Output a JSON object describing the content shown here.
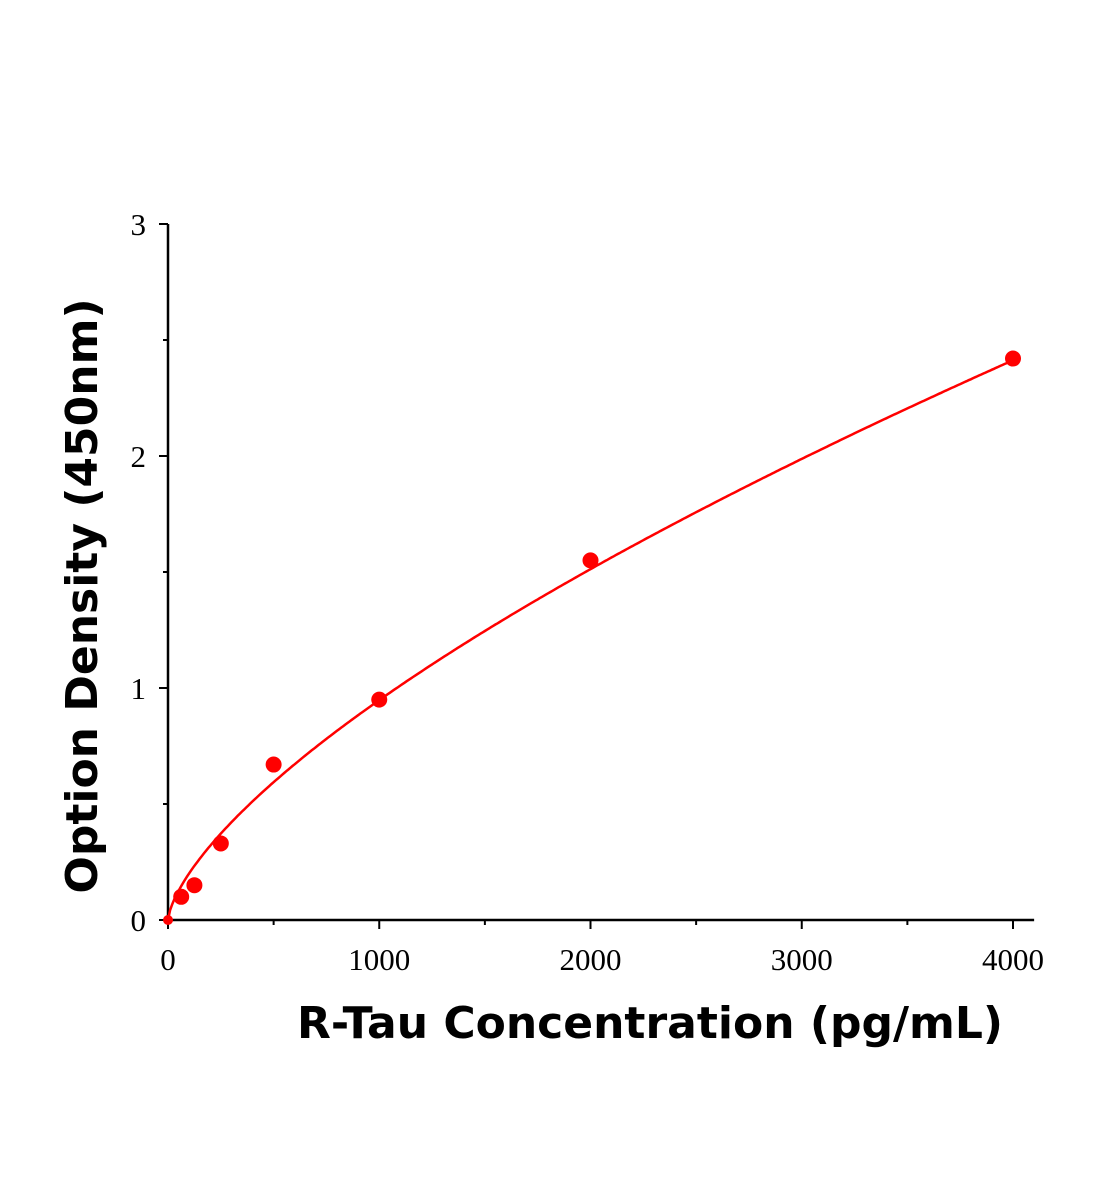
{
  "chart_data": {
    "type": "scatter",
    "title": "",
    "xlabel": "R-Tau Concentration (pg/mL)",
    "ylabel": "Option Density (450nm)",
    "xlim": [
      0,
      4100
    ],
    "ylim": [
      0,
      3
    ],
    "x_ticks": [
      0,
      1000,
      2000,
      3000,
      4000
    ],
    "x_tick_labels": [
      "0",
      "1000",
      "2000",
      "3000",
      "4000"
    ],
    "y_ticks": [
      0,
      1,
      2,
      3
    ],
    "y_tick_labels": [
      "0",
      "1",
      "2",
      "3"
    ],
    "grid": false,
    "color": "#ff0000",
    "series": [
      {
        "x": [
          0,
          62.5,
          125,
          250,
          500,
          1000,
          2000,
          4000
        ],
        "y": [
          0.0,
          0.1,
          0.15,
          0.33,
          0.67,
          0.95,
          1.55,
          2.42
        ],
        "fit_curve": true
      }
    ]
  }
}
